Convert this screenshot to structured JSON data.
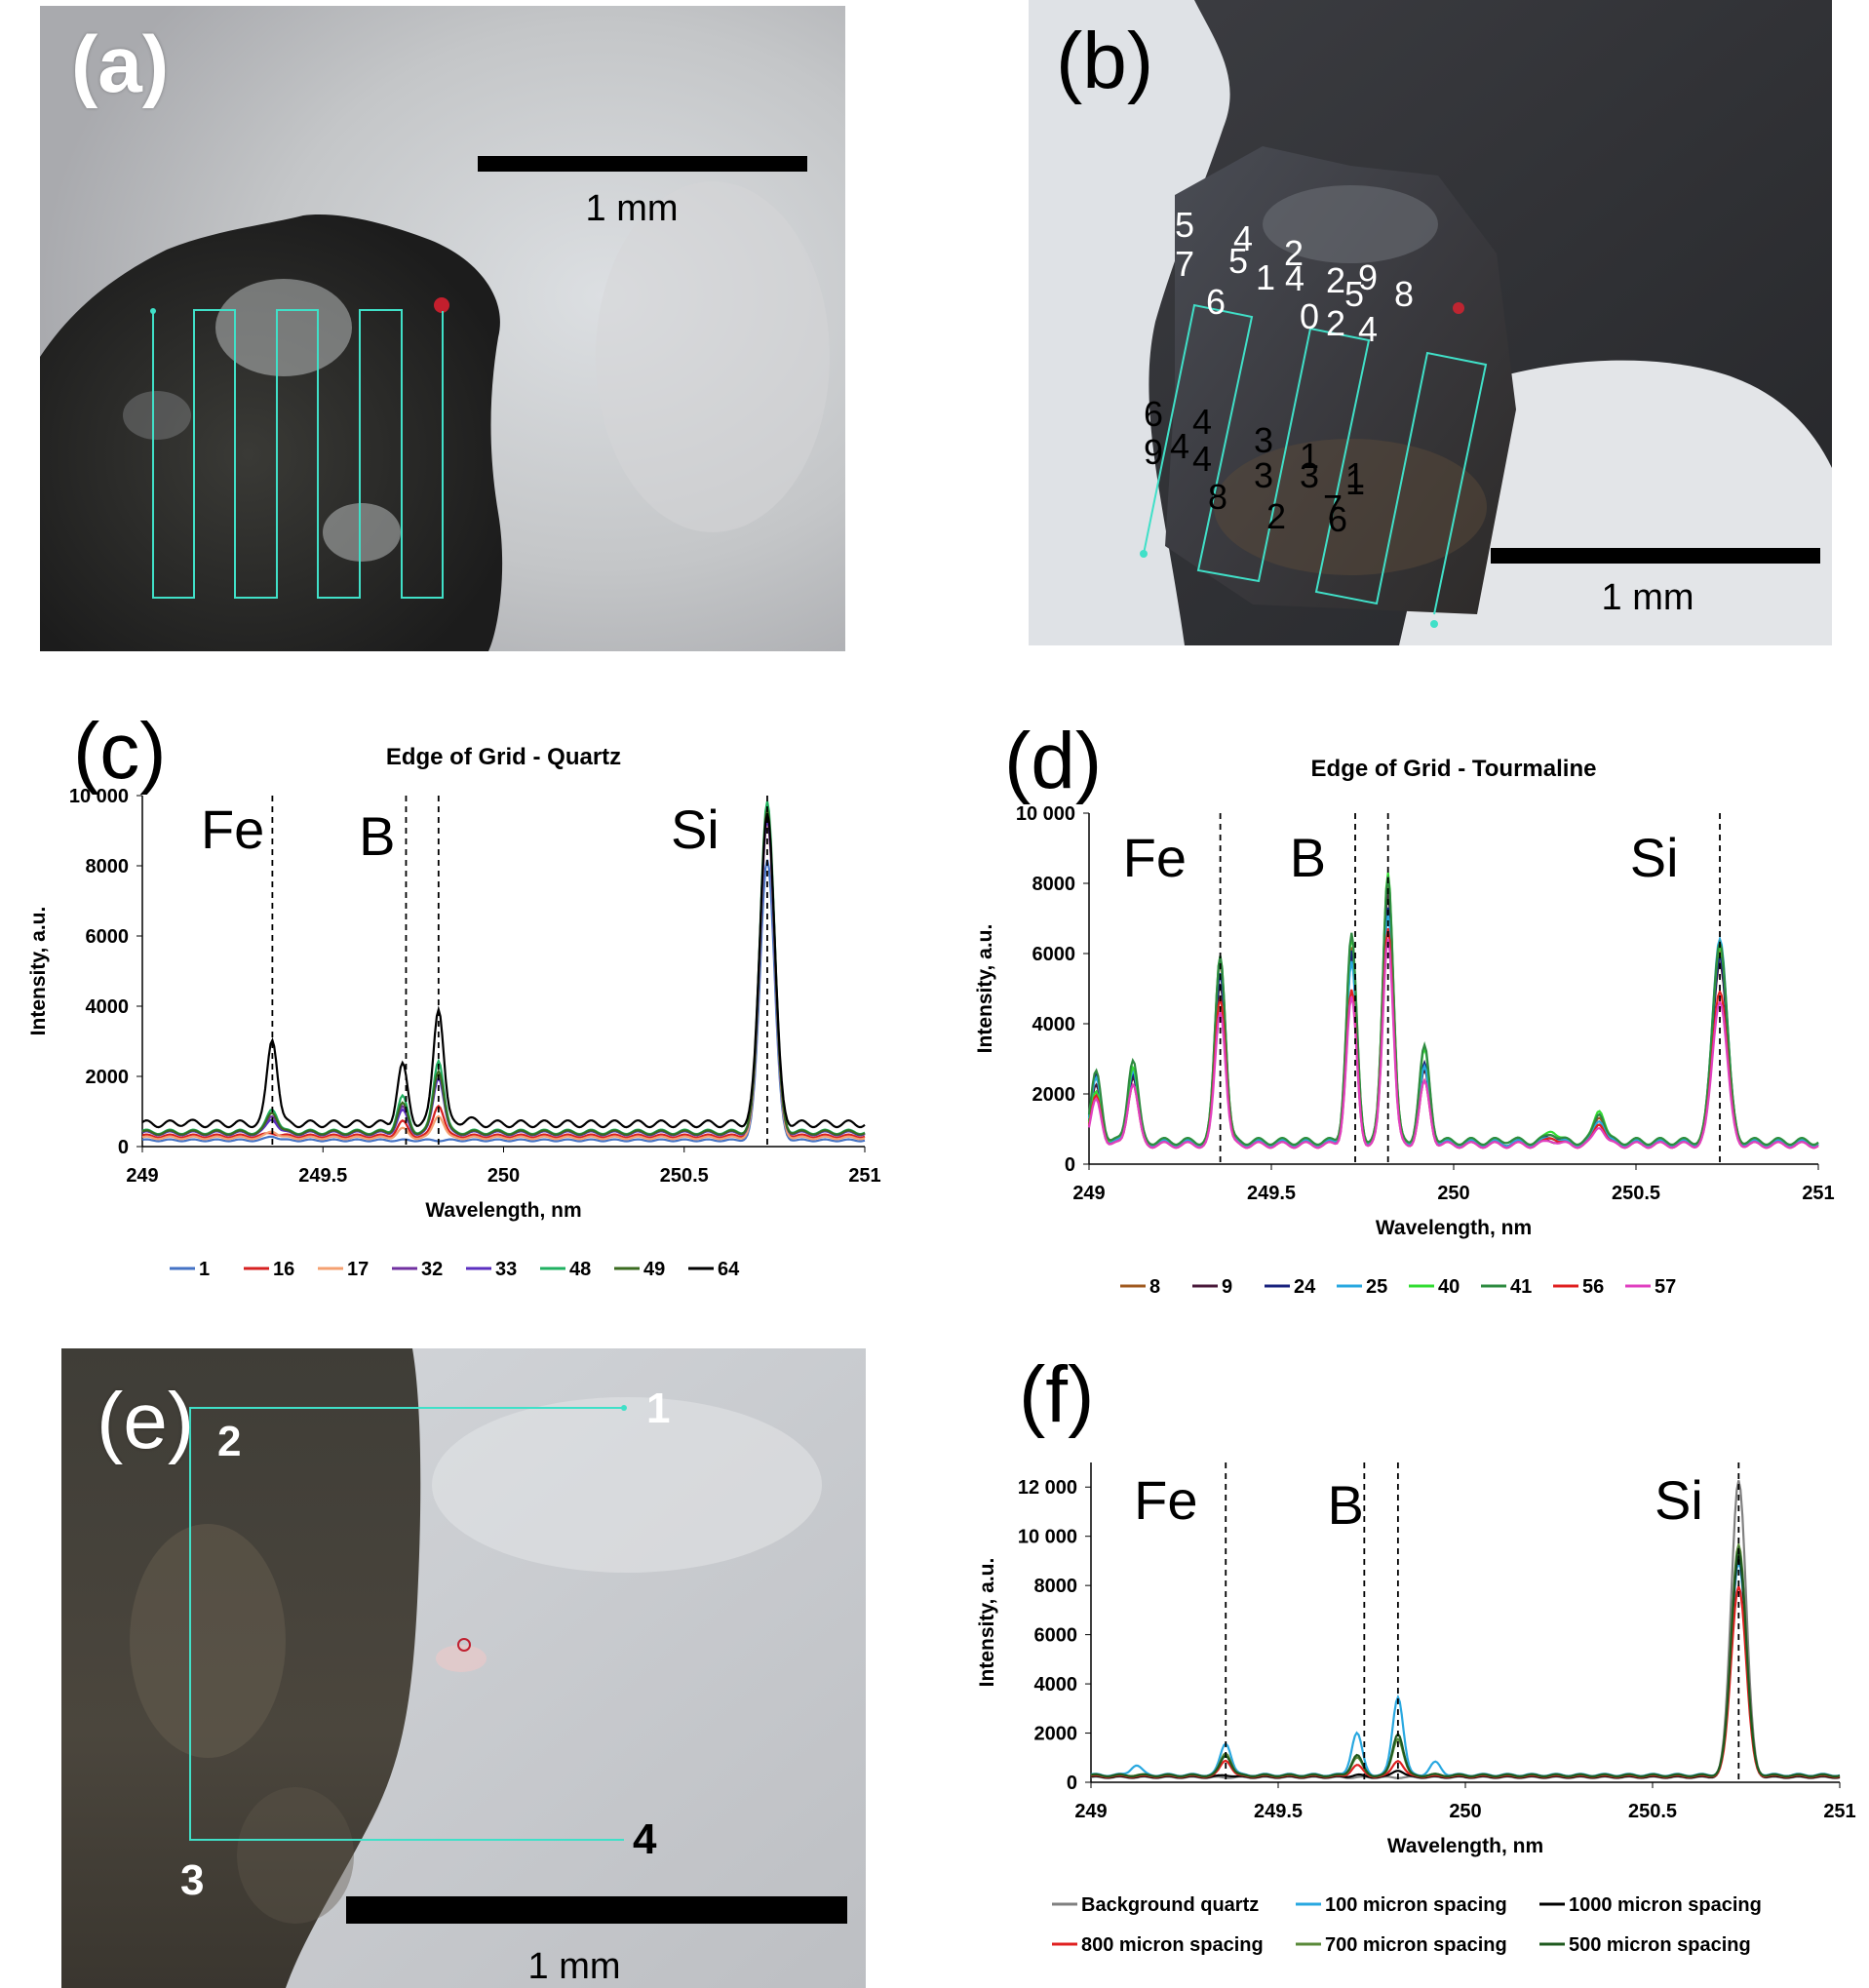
{
  "panels": {
    "a": {
      "label": "(a)",
      "scale_text": "1 mm"
    },
    "b": {
      "label": "(b)",
      "scale_text": "1 mm",
      "grid_labels": [
        "5",
        "4",
        "2",
        "7",
        "5",
        "1",
        "4",
        "2",
        "9",
        "8",
        "6",
        "0",
        "5",
        "2",
        "4",
        "6",
        "4",
        "3",
        "1",
        "4",
        "9",
        "4",
        "3",
        "3",
        "1",
        "1",
        "8",
        "2",
        "7",
        "6"
      ]
    },
    "c": {
      "label": "(c)"
    },
    "d": {
      "label": "(d)"
    },
    "e": {
      "label": "(e)",
      "scale_text": "1 mm",
      "points": [
        "1",
        "2",
        "3",
        "4"
      ]
    },
    "f": {
      "label": "(f)"
    }
  },
  "colors": {
    "marker": "#40e0c8",
    "laser_spot": "#e02030"
  },
  "chart_data": [
    {
      "id": "c",
      "type": "line",
      "title": "Edge of Grid - Quartz",
      "xlabel": "Wavelength, nm",
      "ylabel": "Intensity, a.u.",
      "xlim": [
        249,
        251
      ],
      "ylim": [
        0,
        10000
      ],
      "xticks": [
        "249",
        "249.5",
        "250",
        "250.5",
        "251"
      ],
      "yticks": [
        "0",
        "2000",
        "4000",
        "6000",
        "8000",
        "10 000"
      ],
      "element_lines": [
        249.36,
        249.73,
        249.82,
        250.73
      ],
      "element_labels": [
        {
          "text": "Fe",
          "x": 249.25,
          "y": 8500
        },
        {
          "text": "B",
          "x": 249.65,
          "y": 8300
        },
        {
          "text": "Si",
          "x": 250.53,
          "y": 8500
        }
      ],
      "legend_position": "bottom",
      "peak_positions": [
        249.12,
        249.36,
        249.72,
        249.82,
        249.9,
        250.73
      ],
      "series": [
        {
          "name": "1",
          "color": "#4472c4",
          "baseline": 180,
          "peaks": [
            80,
            300,
            120,
            120,
            40,
            8200
          ]
        },
        {
          "name": "16",
          "color": "#d62020",
          "baseline": 300,
          "peaks": [
            150,
            400,
            700,
            1200,
            200,
            9500
          ]
        },
        {
          "name": "17",
          "color": "#f4a070",
          "baseline": 250,
          "peaks": [
            100,
            450,
            500,
            900,
            150,
            9300
          ]
        },
        {
          "name": "32",
          "color": "#7030a0",
          "baseline": 380,
          "peaks": [
            200,
            900,
            1100,
            2200,
            300,
            9600
          ]
        },
        {
          "name": "33",
          "color": "#5b2fc0",
          "baseline": 380,
          "peaks": [
            200,
            800,
            1000,
            2000,
            300,
            9400
          ]
        },
        {
          "name": "48",
          "color": "#1fb060",
          "baseline": 420,
          "peaks": [
            300,
            1100,
            1400,
            2500,
            400,
            9900
          ]
        },
        {
          "name": "49",
          "color": "#3a6a1f",
          "baseline": 400,
          "peaks": [
            250,
            1000,
            1200,
            2200,
            350,
            9700
          ]
        },
        {
          "name": "64",
          "color": "#000000",
          "baseline": 650,
          "peaks": [
            700,
            3100,
            2300,
            4000,
            800,
            9600
          ]
        }
      ]
    },
    {
      "id": "d",
      "type": "line",
      "title": "Edge of Grid - Tourmaline",
      "xlabel": "Wavelength, nm",
      "ylabel": "Intensity, a.u.",
      "xlim": [
        249,
        251
      ],
      "ylim": [
        0,
        10000
      ],
      "xticks": [
        "249",
        "249.5",
        "250",
        "250.5",
        "251"
      ],
      "yticks": [
        "0",
        "2000",
        "4000",
        "6000",
        "8000",
        "10 000"
      ],
      "element_lines": [
        249.36,
        249.73,
        249.82,
        250.73
      ],
      "element_labels": [
        {
          "text": "Fe",
          "x": 249.18,
          "y": 8200
        },
        {
          "text": "B",
          "x": 249.6,
          "y": 8200
        },
        {
          "text": "Si",
          "x": 250.55,
          "y": 8200
        }
      ],
      "legend_position": "bottom",
      "peak_positions": [
        249.02,
        249.12,
        249.36,
        249.72,
        249.82,
        249.92,
        250.15,
        250.27,
        250.4,
        250.73
      ],
      "series": [
        {
          "name": "8",
          "color": "#a05a20",
          "baseline": 600,
          "peaks": [
            2000,
            2600,
            5800,
            6100,
            8200,
            2800,
            600,
            800,
            1400,
            6200
          ]
        },
        {
          "name": "9",
          "color": "#4a1a3a",
          "baseline": 600,
          "peaks": [
            2200,
            2500,
            5200,
            5800,
            7800,
            2600,
            500,
            700,
            1200,
            5800
          ]
        },
        {
          "name": "24",
          "color": "#1a237e",
          "baseline": 600,
          "peaks": [
            2500,
            2600,
            5500,
            6000,
            7400,
            2800,
            600,
            900,
            1500,
            6000
          ]
        },
        {
          "name": "25",
          "color": "#29a8e0",
          "baseline": 600,
          "peaks": [
            2400,
            2700,
            5900,
            5700,
            7200,
            2700,
            500,
            800,
            1300,
            6500
          ]
        },
        {
          "name": "40",
          "color": "#33dd33",
          "baseline": 650,
          "peaks": [
            2000,
            2800,
            6000,
            6400,
            8400,
            3200,
            700,
            1000,
            1600,
            6300
          ]
        },
        {
          "name": "41",
          "color": "#2e8b40",
          "baseline": 650,
          "peaks": [
            2600,
            3000,
            6000,
            6500,
            8300,
            3300,
            700,
            900,
            1500,
            6400
          ]
        },
        {
          "name": "56",
          "color": "#e02020",
          "baseline": 550,
          "peaks": [
            1900,
            2300,
            4800,
            4900,
            6800,
            2300,
            500,
            800,
            1200,
            5000
          ]
        },
        {
          "name": "57",
          "color": "#e040c0",
          "baseline": 550,
          "peaks": [
            1800,
            2300,
            4400,
            4700,
            6500,
            2300,
            400,
            700,
            1100,
            4700
          ]
        }
      ]
    },
    {
      "id": "f",
      "type": "line",
      "title": "",
      "xlabel": "Wavelength, nm",
      "ylabel": "Intensity, a.u.",
      "xlim": [
        249,
        251
      ],
      "ylim": [
        0,
        13000
      ],
      "xticks": [
        "249",
        "249.5",
        "250",
        "250.5",
        "251"
      ],
      "yticks": [
        "0",
        "2000",
        "4000",
        "6000",
        "8000",
        "10 000",
        "12 000"
      ],
      "element_lines": [
        249.36,
        249.73,
        249.82,
        250.73
      ],
      "element_labels": [
        {
          "text": "Fe",
          "x": 249.2,
          "y": 10700
        },
        {
          "text": "B",
          "x": 249.68,
          "y": 10500
        },
        {
          "text": "Si",
          "x": 250.57,
          "y": 10700
        }
      ],
      "legend_position": "bottom",
      "peak_positions": [
        249.12,
        249.36,
        249.71,
        249.82,
        249.92,
        250.73
      ],
      "series": [
        {
          "name": "Background quartz",
          "color": "#808080",
          "baseline": 200,
          "peaks": [
            100,
            150,
            150,
            200,
            80,
            12300
          ]
        },
        {
          "name": "100 micron spacing",
          "color": "#29a8e0",
          "baseline": 300,
          "peaks": [
            700,
            1600,
            2000,
            3500,
            800,
            9000
          ]
        },
        {
          "name": "1000 micron spacing",
          "color": "#000000",
          "baseline": 220,
          "peaks": [
            150,
            300,
            300,
            500,
            120,
            9300
          ]
        },
        {
          "name": "800 micron spacing",
          "color": "#e02020",
          "baseline": 250,
          "peaks": [
            200,
            900,
            700,
            900,
            200,
            8000
          ]
        },
        {
          "name": "700 micron spacing",
          "color": "#5a8a3a",
          "baseline": 280,
          "peaks": [
            300,
            1200,
            1000,
            1800,
            300,
            9700
          ]
        },
        {
          "name": "500 micron spacing",
          "color": "#1f5a1f",
          "baseline": 280,
          "peaks": [
            250,
            1100,
            1100,
            2000,
            300,
            9500
          ]
        }
      ]
    }
  ]
}
